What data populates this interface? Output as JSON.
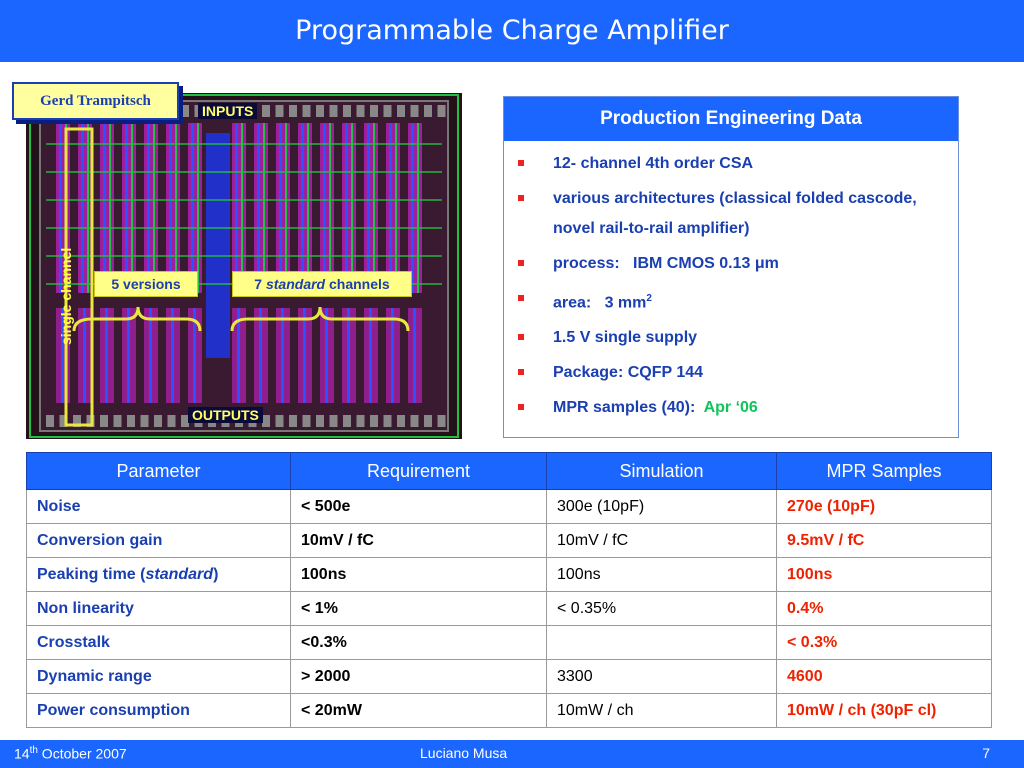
{
  "slide": {
    "title": "Programmable Charge Amplifier",
    "author": "Gerd Trampitsch"
  },
  "chip": {
    "inputs_label": "INPUTS",
    "outputs_label": "OUTPUTS",
    "versions_label": "5 versions",
    "channels_prefix": "7 ",
    "channels_italic": "standard",
    "channels_suffix": " channels",
    "single_channel_label": "single channel",
    "colors": {
      "magenta": "#c020c0",
      "blue": "#3050ff",
      "green": "#20c040",
      "yellow": "#e8e840"
    }
  },
  "production": {
    "title": "Production Engineering Data",
    "items": [
      "12- channel 4th order CSA",
      "various architectures (classical folded cascode, novel rail-to-rail amplifier)",
      "process:   IBM CMOS 0.13 μm",
      "area:   3 mm",
      "1.5 V single supply",
      "Package: CQFP 144",
      "MPR samples (40):  "
    ],
    "area_superscript": "2",
    "mpr_date": "Apr ‘06"
  },
  "table": {
    "headers": [
      "Parameter",
      "Requirement",
      "Simulation",
      "MPR Samples"
    ],
    "rows": [
      {
        "param": "Noise",
        "req": "< 500e",
        "sim": "300e (10pF)",
        "mpr": "270e (10pF)"
      },
      {
        "param": "Conversion gain",
        "req": "10mV / fC",
        "sim": "10mV / fC",
        "mpr": "9.5mV / fC"
      },
      {
        "param": "Peaking time (",
        "param_italic": "standard",
        "param_end": ")",
        "req": "100ns",
        "sim": "100ns",
        "mpr": "100ns"
      },
      {
        "param": "Non linearity",
        "req": "< 1%",
        "sim": "< 0.35%",
        "mpr": "0.4%"
      },
      {
        "param": "Crosstalk",
        "req": "<0.3%",
        "sim": "",
        "mpr": "< 0.3%"
      },
      {
        "param": "Dynamic range",
        "req": "> 2000",
        "sim": "3300",
        "mpr": "4600"
      },
      {
        "param": "Power consumption",
        "req": "< 20mW",
        "sim": "10mW / ch",
        "mpr": "10mW / ch (30pF cl)"
      }
    ]
  },
  "footer": {
    "date_day": "14",
    "date_sup": "th",
    "date_rest": " October 2007",
    "presenter": "Luciano Musa",
    "page": "7"
  }
}
